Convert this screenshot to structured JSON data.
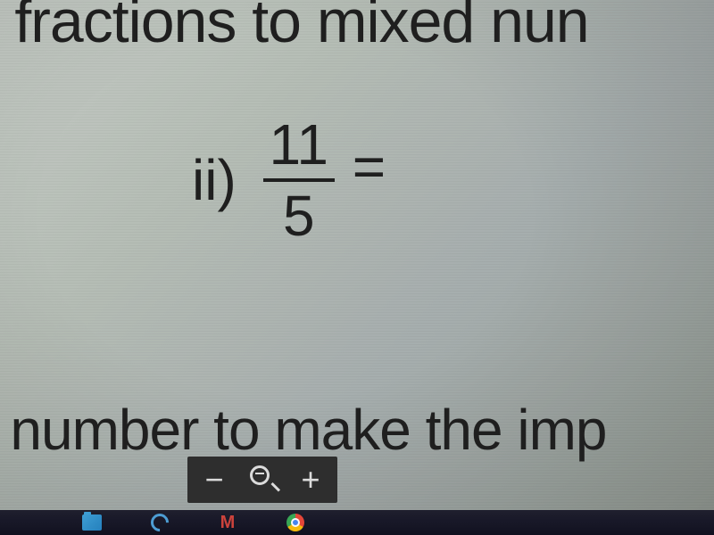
{
  "worksheet": {
    "top_text_fragment": "er fractions to mixed nun",
    "problem": {
      "label": "ii)",
      "numerator": "11",
      "denominator": "5",
      "equals": "="
    },
    "bottom_text_fragment": "d number to make the imp",
    "text_color": "#1a1a1a",
    "background_gradient": [
      "#c8cec8",
      "#b8c0b8",
      "#a8b0b0",
      "#98a098"
    ],
    "font_family": "Arial",
    "top_fontsize": 68,
    "problem_fontsize": 64,
    "bottom_fontsize": 64
  },
  "zoom_toolbar": {
    "background": "#2a2a2a",
    "icon_color": "#e0e0e0",
    "minus": "−",
    "plus": "+"
  },
  "taskbar": {
    "background": "#0a0a1a",
    "icons": [
      "explorer",
      "edge",
      "mail",
      "chrome"
    ]
  }
}
